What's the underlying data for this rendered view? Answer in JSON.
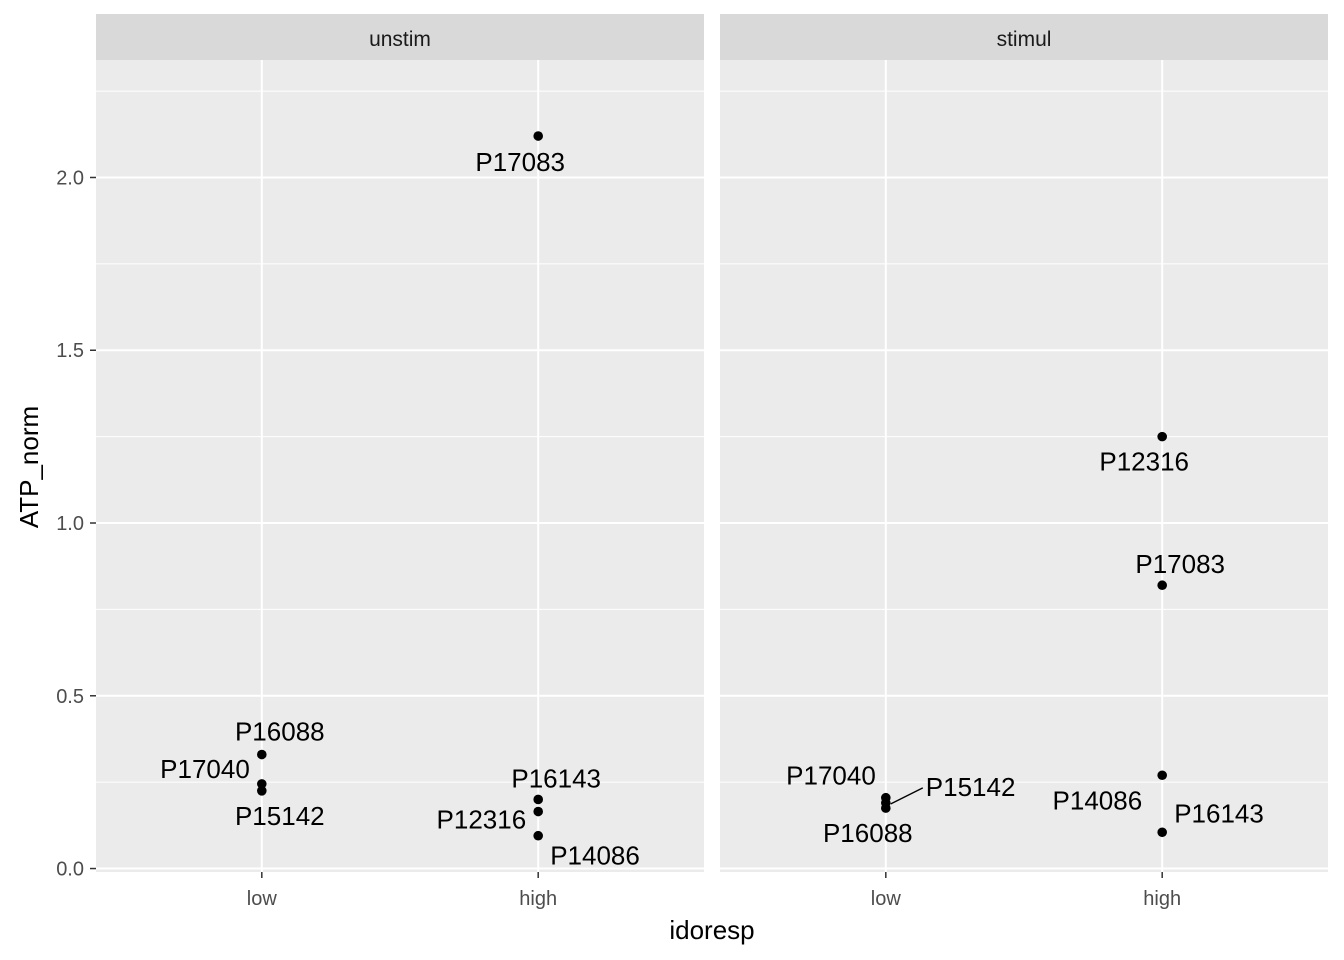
{
  "chart_data": {
    "type": "scatter",
    "xlabel": "idoresp",
    "ylabel": "ATP_norm",
    "categories": [
      "low",
      "high"
    ],
    "y_ticks": [
      0.0,
      0.5,
      1.0,
      1.5,
      2.0
    ],
    "y_tick_labels": [
      "0.0",
      "0.5",
      "1.0",
      "1.5",
      "2.0"
    ],
    "ylim": [
      -0.01,
      2.34
    ],
    "grid": true,
    "colors": {
      "panel_background": "#ebebeb",
      "strip_background": "#d9d9d9",
      "grid": "#ffffff",
      "point": "#000000"
    },
    "panels": [
      {
        "strip": "unstim",
        "points": [
          {
            "x": "low",
            "y": 0.33,
            "label": "P16088"
          },
          {
            "x": "low",
            "y": 0.245,
            "label": "P17040"
          },
          {
            "x": "low",
            "y": 0.225,
            "label": "P15142"
          },
          {
            "x": "high",
            "y": 2.12,
            "label": "P17083"
          },
          {
            "x": "high",
            "y": 0.2,
            "label": "P16143"
          },
          {
            "x": "high",
            "y": 0.165,
            "label": "P12316"
          },
          {
            "x": "high",
            "y": 0.095,
            "label": "P14086"
          }
        ]
      },
      {
        "strip": "stimul",
        "points": [
          {
            "x": "low",
            "y": 0.205,
            "label": "P17040"
          },
          {
            "x": "low",
            "y": 0.19,
            "label": "P15142"
          },
          {
            "x": "low",
            "y": 0.175,
            "label": "P16088"
          },
          {
            "x": "high",
            "y": 1.25,
            "label": "P12316"
          },
          {
            "x": "high",
            "y": 0.82,
            "label": "P17083"
          },
          {
            "x": "high",
            "y": 0.27,
            "label": "P14086"
          },
          {
            "x": "high",
            "y": 0.105,
            "label": "P16143"
          }
        ]
      }
    ]
  }
}
